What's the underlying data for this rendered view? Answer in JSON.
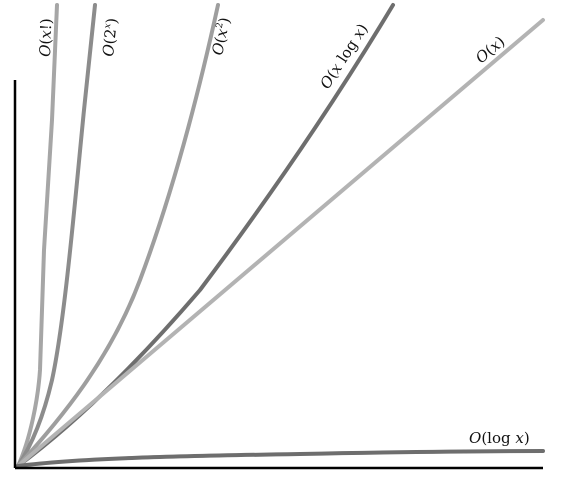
{
  "curves": [
    {
      "id": "factorial",
      "label_o": "O",
      "label_open": "(",
      "label_var": "x",
      "label_rest": "!)",
      "color": "#a6a6a6"
    },
    {
      "id": "exponential",
      "label_o": "O",
      "label_open": "(2",
      "label_sup": "x",
      "label_close": ")",
      "color": "#8c8c8c"
    },
    {
      "id": "quadratic",
      "label_o": "O",
      "label_open": "(",
      "label_var": "x",
      "label_sup": "2",
      "label_close": ")",
      "color": "#9e9e9e"
    },
    {
      "id": "linearithmic",
      "label_o": "O",
      "label_open": "(",
      "label_var": "x",
      "label_mid": " log ",
      "label_var2": "x",
      "label_close": ")",
      "color": "#6e6e6e"
    },
    {
      "id": "linear",
      "label_o": "O",
      "label_open": "(",
      "label_var": "x",
      "label_close": ")",
      "color": "#b3b3b3"
    },
    {
      "id": "logarithmic",
      "label_o": "O",
      "label_open": "(log ",
      "label_var": "x",
      "label_close": ")",
      "color": "#6e6e6e"
    }
  ],
  "axes": {
    "color": "#000000"
  }
}
